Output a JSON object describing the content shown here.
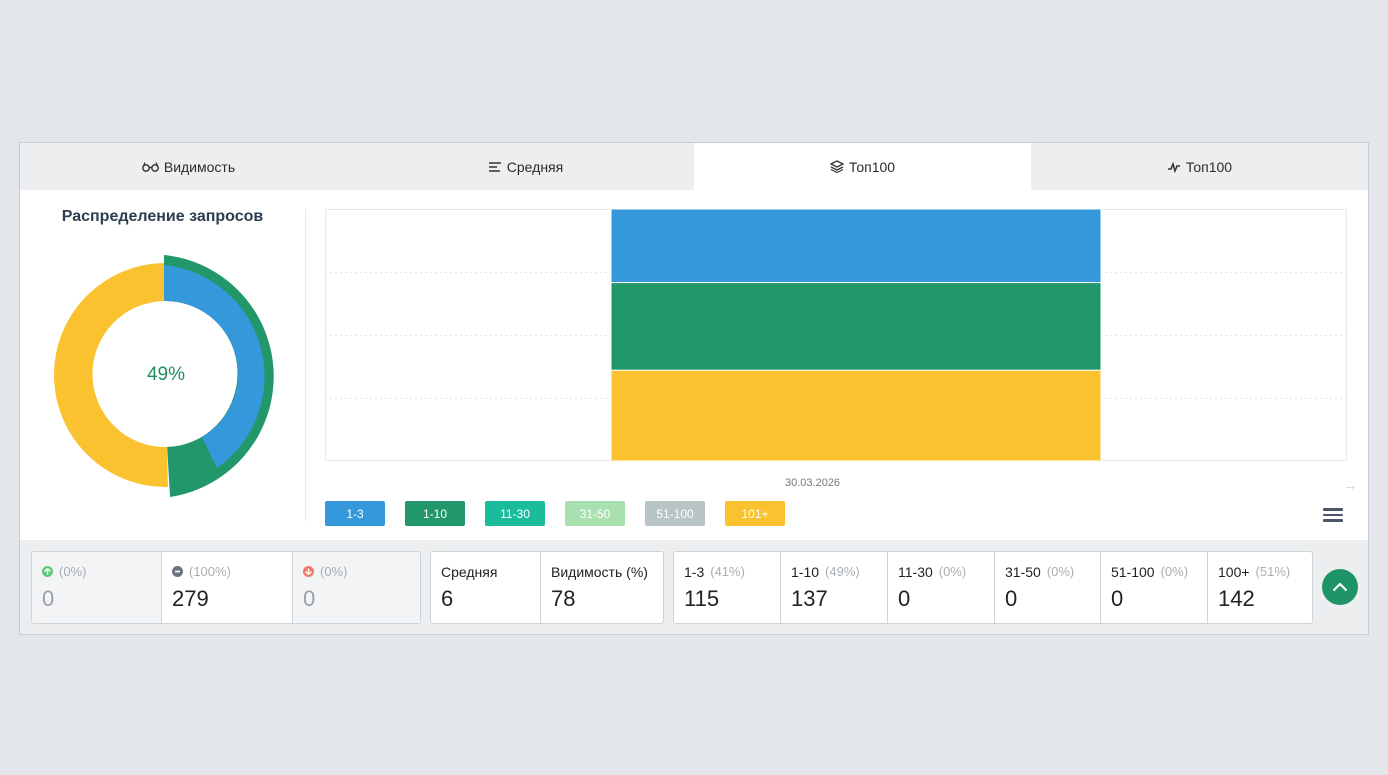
{
  "tabs": [
    {
      "label": "Видимость",
      "icon": "glasses-icon"
    },
    {
      "label": "Средняя",
      "icon": "lines-icon"
    },
    {
      "label": "Топ100",
      "icon": "layers-icon",
      "active": true
    },
    {
      "label": "Топ100",
      "icon": "activity-icon"
    }
  ],
  "distribution": {
    "title": "Распределение запросов",
    "center_label": "49%",
    "colors": {
      "blue": "#3498db",
      "green": "#22976a",
      "yellow": "#f9c22e"
    }
  },
  "chart_data": {
    "type": "bar",
    "stacked": true,
    "categories": [
      "30.03.2026"
    ],
    "series": [
      {
        "name": "1-3",
        "color": "#3498db",
        "values": [
          115
        ]
      },
      {
        "name": "1-10",
        "color": "#22976a",
        "values": [
          137
        ]
      },
      {
        "name": "11-30",
        "color": "#1abc9c",
        "values": [
          0
        ]
      },
      {
        "name": "31-50",
        "color": "#a8e0b0",
        "values": [
          0
        ]
      },
      {
        "name": "51-100",
        "color": "#b9c4c7",
        "values": [
          0
        ]
      },
      {
        "name": "101+",
        "color": "#f9c22e",
        "values": [
          142
        ]
      }
    ],
    "grid": true,
    "legend": "bottom-left"
  },
  "legend": [
    {
      "label": "1-3",
      "color": "#3498db"
    },
    {
      "label": "1-10",
      "color": "#22976a"
    },
    {
      "label": "11-30",
      "color": "#1abc9c"
    },
    {
      "label": "31-50",
      "color": "#a8e0b0"
    },
    {
      "label": "51-100",
      "color": "#b9c4c7"
    },
    {
      "label": "101+",
      "color": "#f9c22e"
    }
  ],
  "stats": {
    "changes": [
      {
        "icon": "arrow-up-icon",
        "color": "#5cc97b",
        "pct": "(0%)",
        "value": "0"
      },
      {
        "icon": "minus-icon",
        "color": "#6b7280",
        "pct": "(100%)",
        "value": "279"
      },
      {
        "icon": "arrow-down-icon",
        "color": "#ef7b6b",
        "pct": "(0%)",
        "value": "0"
      }
    ],
    "averages": [
      {
        "label": "Средняя",
        "value": "6"
      },
      {
        "label": "Видимость (%)",
        "value": "78"
      }
    ],
    "ranges": [
      {
        "label": "1-3",
        "pct": "(41%)",
        "value": "115"
      },
      {
        "label": "1-10",
        "pct": "(49%)",
        "value": "137"
      },
      {
        "label": "11-30",
        "pct": "(0%)",
        "value": "0"
      },
      {
        "label": "31-50",
        "pct": "(0%)",
        "value": "0"
      },
      {
        "label": "51-100",
        "pct": "(0%)",
        "value": "0"
      },
      {
        "label": "100+",
        "pct": "(51%)",
        "value": "142"
      }
    ]
  }
}
